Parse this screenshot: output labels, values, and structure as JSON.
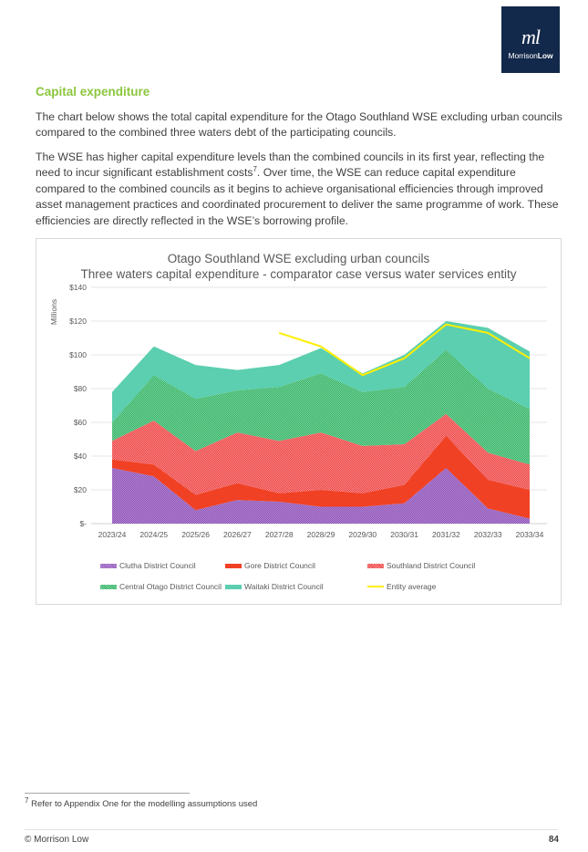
{
  "logo": {
    "mark": "ml",
    "word_part1": "Morrison",
    "word_part2": "Low"
  },
  "heading": "Capital expenditure",
  "paragraphs": {
    "p1": "The chart below shows the total capital expenditure for the Otago Southland WSE excluding urban councils compared to the combined three waters debt of the participating councils.",
    "p2_a": "The WSE has higher capital expenditure levels than the combined councils in its first year, reflecting the need to incur significant establishment costs",
    "p2_sup": "7",
    "p2_b": ".  Over time, the WSE can reduce capital expenditure compared to the combined councils as it begins to achieve organisational efficiencies through improved asset management practices and coordinated procurement to deliver the same programme of work.  These efficiencies are directly reflected in the WSE’s borrowing profile."
  },
  "chart_data": {
    "type": "area",
    "stacked": true,
    "title": "Otago Southland WSE excluding urban councils",
    "subtitle": "Three waters capital expenditure - comparator case versus water services entity",
    "xlabel": "",
    "ylabel": "Millions",
    "ylim": [
      0,
      140
    ],
    "yticks": [
      "$-",
      "$20",
      "$40",
      "$60",
      "$80",
      "$100",
      "$120",
      "$140"
    ],
    "grid": true,
    "legend_position": "bottom",
    "categories": [
      "2023/24",
      "2024/25",
      "2025/26",
      "2026/27",
      "2027/28",
      "2028/29",
      "2029/30",
      "2030/31",
      "2031/32",
      "2032/33",
      "2033/34"
    ],
    "series": [
      {
        "name": "Clutha District Council",
        "color": "#9b59b6",
        "pattern": "dotted",
        "values": [
          33,
          28,
          8,
          14,
          13,
          10,
          10,
          12,
          33,
          9,
          3
        ]
      },
      {
        "name": "Gore District Council",
        "color": "#f04124",
        "pattern": "solid",
        "values": [
          5,
          7,
          9,
          10,
          5,
          10,
          8,
          11,
          19,
          17,
          17
        ]
      },
      {
        "name": "Southland District Council",
        "color": "#f25c5c",
        "pattern": "dotted",
        "values": [
          11,
          26,
          26,
          30,
          31,
          34,
          28,
          24,
          13,
          16,
          15
        ]
      },
      {
        "name": "Central Otago District Council",
        "color": "#3cb86e",
        "pattern": "dotted",
        "values": [
          11,
          27,
          31,
          25,
          32,
          35,
          32,
          34,
          38,
          38,
          33
        ]
      },
      {
        "name": "Waitaki District Council",
        "color": "#5bcfb0",
        "pattern": "solid",
        "values": [
          18,
          17,
          20,
          12,
          13,
          15,
          11,
          19,
          17,
          36,
          34
        ]
      }
    ],
    "line_series": [
      {
        "name": "Entity average",
        "color": "#ffee00",
        "values": [
          null,
          null,
          null,
          null,
          113,
          105,
          88,
          98,
          118,
          113,
          98
        ]
      }
    ]
  },
  "legend": [
    {
      "label": "Clutha District Council"
    },
    {
      "label": "Gore District Council"
    },
    {
      "label": "Southland District Council"
    },
    {
      "label": "Central Otago District Council"
    },
    {
      "label": "Waitaki District Council"
    },
    {
      "label": "Entity average"
    }
  ],
  "footnote": {
    "number": "7",
    "text": " Refer to Appendix One for the modelling assumptions used"
  },
  "footer": {
    "left": "© Morrison Low",
    "page": "84"
  }
}
